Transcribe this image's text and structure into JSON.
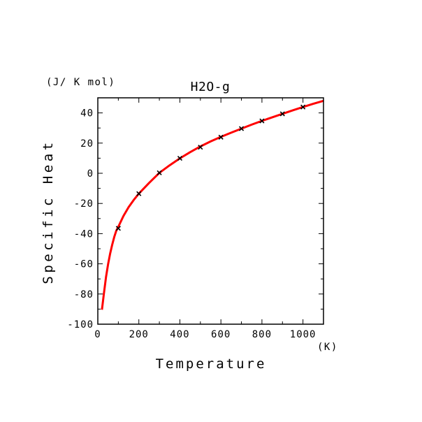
{
  "chart_data": {
    "type": "line",
    "title": "H2O-g",
    "xlabel": "Temperature",
    "ylabel": "Specific Heat",
    "x_unit": "(K)",
    "y_unit": "(J/ K mol)",
    "xlim": [
      0,
      1100
    ],
    "ylim": [
      -100,
      50
    ],
    "x_ticks": [
      0,
      200,
      400,
      600,
      800,
      1000
    ],
    "y_ticks": [
      -100,
      -80,
      -60,
      -40,
      -20,
      0,
      20,
      40
    ],
    "x_tick_labels": [
      "0",
      "200",
      "400",
      "600",
      "800",
      "1000"
    ],
    "y_tick_labels": [
      "-100",
      "-80",
      "-60",
      "-40",
      "-20",
      "0",
      "20",
      "40"
    ],
    "grid": false,
    "legend": "none",
    "series": [
      {
        "style": "line",
        "color": "#ff0000",
        "x": [
          20,
          30,
          40,
          50,
          60,
          70,
          80,
          90,
          100,
          125,
          150,
          175,
          200,
          250,
          300,
          350,
          400,
          450,
          500,
          550,
          600,
          650,
          700,
          750,
          800,
          850,
          900,
          950,
          1000,
          1050,
          1100
        ],
        "y": [
          -90.4,
          -79.4,
          -68.9,
          -60.3,
          -53.3,
          -47.3,
          -42.2,
          -38.1,
          -35.4,
          -28.3,
          -22.5,
          -17.7,
          -13.5,
          -6.4,
          0.3,
          5.3,
          9.9,
          14.0,
          17.8,
          21.1,
          24.1,
          26.9,
          29.6,
          32.2,
          34.7,
          37.1,
          39.4,
          41.7,
          43.9,
          46.0,
          48.0
        ]
      },
      {
        "style": "markers",
        "color": "#000000",
        "marker": "x",
        "x": [
          100,
          200,
          300,
          400,
          500,
          600,
          700,
          800,
          900,
          1000
        ],
        "y": [
          -36.5,
          -13.5,
          0.3,
          9.9,
          17.3,
          23.9,
          29.6,
          34.7,
          39.4,
          43.9
        ]
      }
    ]
  }
}
